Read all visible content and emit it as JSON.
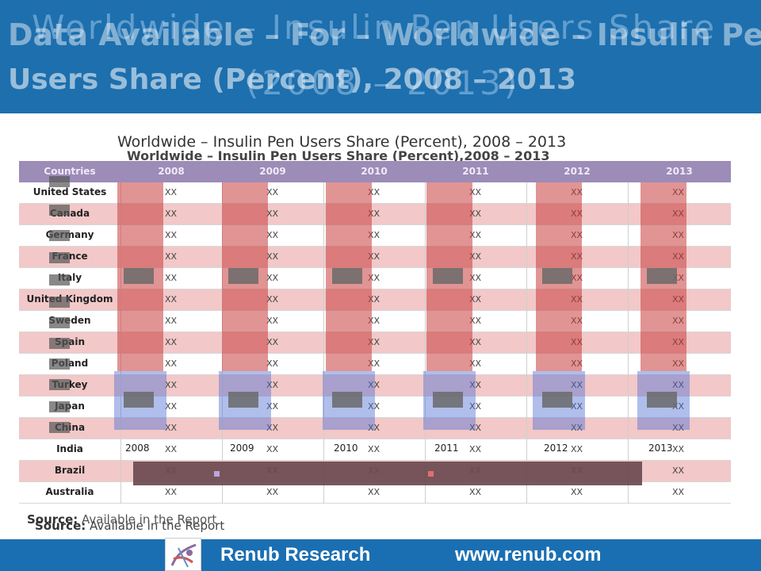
{
  "slide": {
    "title_line1_back": "Worldwide – Insulin Pen Users Share",
    "title_line2_back": "(2008 – 2013)",
    "title_line1_front": "Data Available – For – Worldwide – Insulin Pen",
    "title_line2_front": "Users Share (Percent), 2008 – 2013"
  },
  "table": {
    "title_a": "Worldwide – Insulin Pen Users Share (Percent), 2008 – 2013",
    "title_b": "Worldwide – Insulin Pen Users Share (Percent),2008 – 2013",
    "headers": [
      "Countries",
      "2008",
      "2009",
      "2010",
      "2011",
      "2012",
      "2013"
    ],
    "rows": [
      {
        "country": "United States",
        "values": [
          "XX",
          "XX",
          "XX",
          "XX",
          "XX",
          "XX"
        ]
      },
      {
        "country": "Canada",
        "values": [
          "XX",
          "XX",
          "XX",
          "XX",
          "XX",
          "XX"
        ]
      },
      {
        "country": "Germany",
        "values": [
          "XX",
          "XX",
          "XX",
          "XX",
          "XX",
          "XX"
        ]
      },
      {
        "country": "France",
        "values": [
          "XX",
          "XX",
          "XX",
          "XX",
          "XX",
          "XX"
        ]
      },
      {
        "country": "Italy",
        "values": [
          "XX",
          "XX",
          "XX",
          "XX",
          "XX",
          "XX"
        ]
      },
      {
        "country": "United Kingdom",
        "values": [
          "XX",
          "XX",
          "XX",
          "XX",
          "XX",
          "XX"
        ]
      },
      {
        "country": "Sweden",
        "values": [
          "XX",
          "XX",
          "XX",
          "XX",
          "XX",
          "XX"
        ]
      },
      {
        "country": "Spain",
        "values": [
          "XX",
          "XX",
          "XX",
          "XX",
          "XX",
          "XX"
        ]
      },
      {
        "country": "Poland",
        "values": [
          "XX",
          "XX",
          "XX",
          "XX",
          "XX",
          "XX"
        ]
      },
      {
        "country": "Turkey",
        "values": [
          "XX",
          "XX",
          "XX",
          "XX",
          "XX",
          "XX"
        ]
      },
      {
        "country": "Japan",
        "values": [
          "XX",
          "XX",
          "XX",
          "XX",
          "XX",
          "XX"
        ]
      },
      {
        "country": "China",
        "values": [
          "XX",
          "XX",
          "XX",
          "XX",
          "XX",
          "XX"
        ]
      },
      {
        "country": "India",
        "values": [
          "XX",
          "XX",
          "XX",
          "XX",
          "XX",
          "XX"
        ]
      },
      {
        "country": "Brazil",
        "values": [
          "XX",
          "XX",
          "XX",
          "XX",
          "XX",
          "XX"
        ]
      },
      {
        "country": "Australia",
        "values": [
          "XX",
          "XX",
          "XX",
          "XX",
          "XX",
          "XX"
        ]
      }
    ]
  },
  "chart_overlay": {
    "categories": [
      "2008",
      "2009",
      "2010",
      "2011",
      "2012",
      "2013"
    ]
  },
  "source": {
    "label": "Source:",
    "text": " Available in the Report"
  },
  "footer": {
    "brand": "Renub Research",
    "url": "www.renub.com",
    "logo_icon": "renub-logo-icon"
  },
  "colors": {
    "header_bg": "#1d6fae",
    "footer_bg": "#1a6fb2",
    "table_header": "#9c8cb7",
    "stripe": "#f2c8c8"
  }
}
